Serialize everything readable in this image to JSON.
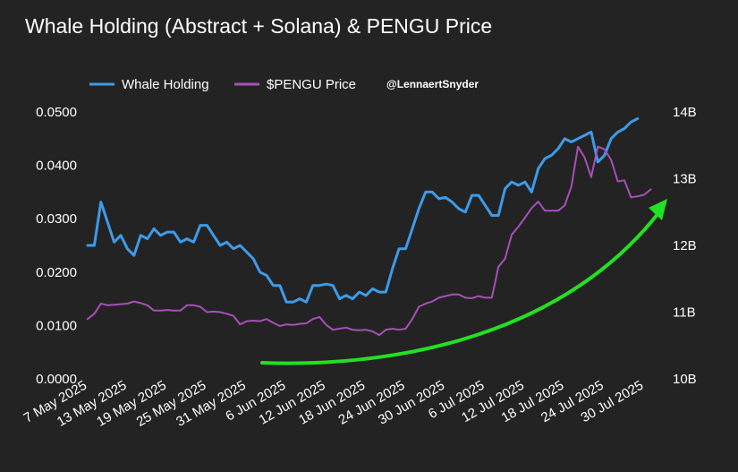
{
  "chart_data": {
    "type": "line",
    "title": "Whale Holding (Abstract + Solana) & PENGU Price",
    "credit": "@LennaertSnyder",
    "legend_position": "top",
    "grid": false,
    "x_ticks": [
      "7 May 2025",
      "13 May 2025",
      "19 May 2025",
      "25 May 2025",
      "31 May 2025",
      "6 Jun 2025",
      "12 Jun 2025",
      "18 Jun 2025",
      "24 Jun 2025",
      "30 Jun 2025",
      "6 Jul 2025",
      "12 Jul 2025",
      "18 Jul 2025",
      "24 Jul 2025",
      "30 Jul 2025"
    ],
    "x_range": [
      0,
      86
    ],
    "y_left": {
      "ticks": [
        "0.0000",
        "0.0100",
        "0.0200",
        "0.0300",
        "0.0400",
        "0.0500"
      ],
      "ylim": [
        0,
        0.05
      ]
    },
    "y_right": {
      "ticks": [
        "10B",
        "11B",
        "12B",
        "13B",
        "14B"
      ],
      "ylim": [
        10,
        14
      ],
      "unit": "B"
    },
    "series": [
      {
        "name": "Whale Holding",
        "axis": "right",
        "color": "#3d9be9",
        "values": [
          12.0,
          12.0,
          12.65,
          12.35,
          12.05,
          12.15,
          11.95,
          11.85,
          12.15,
          12.1,
          12.25,
          12.15,
          12.2,
          12.2,
          12.05,
          12.1,
          12.05,
          12.3,
          12.3,
          12.15,
          12.0,
          12.05,
          11.95,
          12.0,
          11.9,
          11.8,
          11.6,
          11.55,
          11.4,
          11.4,
          11.15,
          11.15,
          11.2,
          11.15,
          11.4,
          11.4,
          11.42,
          11.4,
          11.2,
          11.25,
          11.2,
          11.3,
          11.25,
          11.35,
          11.3,
          11.3,
          11.65,
          11.95,
          11.95,
          12.25,
          12.55,
          12.8,
          12.8,
          12.7,
          12.72,
          12.65,
          12.55,
          12.5,
          12.75,
          12.75,
          12.6,
          12.45,
          12.45,
          12.85,
          12.95,
          12.9,
          12.95,
          12.8,
          13.15,
          13.3,
          13.35,
          13.45,
          13.6,
          13.55,
          13.6,
          13.65,
          13.7,
          13.25,
          13.35,
          13.6,
          13.7,
          13.75,
          13.85,
          13.9
        ]
      },
      {
        "name": "$PENGU Price",
        "axis": "left",
        "color": "#a84fb8",
        "values": [
          0.0112,
          0.0122,
          0.0141,
          0.0138,
          0.0139,
          0.014,
          0.0141,
          0.0145,
          0.0142,
          0.0138,
          0.0128,
          0.0128,
          0.0129,
          0.0128,
          0.0128,
          0.0138,
          0.0138,
          0.0135,
          0.0125,
          0.0126,
          0.0125,
          0.0122,
          0.0118,
          0.0102,
          0.0108,
          0.0109,
          0.0108,
          0.0112,
          0.0105,
          0.0099,
          0.0102,
          0.0101,
          0.0103,
          0.0104,
          0.0112,
          0.0116,
          0.0101,
          0.0092,
          0.0094,
          0.0096,
          0.0092,
          0.0091,
          0.0092,
          0.0089,
          0.0082,
          0.0092,
          0.0094,
          0.0092,
          0.0094,
          0.0112,
          0.0135,
          0.0141,
          0.0145,
          0.0152,
          0.0155,
          0.0158,
          0.0158,
          0.0152,
          0.0151,
          0.0155,
          0.0152,
          0.0152,
          0.021,
          0.0225,
          0.027,
          0.0285,
          0.0302,
          0.032,
          0.0332,
          0.0315,
          0.0315,
          0.0315,
          0.0325,
          0.036,
          0.0435,
          0.0415,
          0.0378,
          0.0435,
          0.043,
          0.041,
          0.037,
          0.0372,
          0.034,
          0.0342,
          0.0345,
          0.0355
        ]
      }
    ],
    "annotations": [
      {
        "type": "arrow",
        "color": "#22e022",
        "description": "upward trend arrow"
      }
    ]
  }
}
